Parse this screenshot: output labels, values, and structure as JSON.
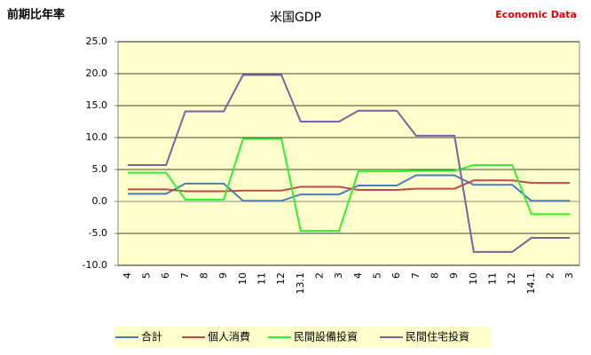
{
  "chart_data": {
    "type": "line",
    "title": "米国GDP",
    "y_label": "前期比年率",
    "source": "Economic Data",
    "categories": [
      "4",
      "5",
      "6",
      "7",
      "8",
      "9",
      "10",
      "11",
      "12",
      "13.1",
      "2",
      "3",
      "4",
      "5",
      "6",
      "7",
      "8",
      "9",
      "10",
      "11",
      "12",
      "14.1",
      "2",
      "3"
    ],
    "ylim": [
      -10,
      25
    ],
    "yticks": [
      {
        "value": -10,
        "label": "-10.0"
      },
      {
        "value": -5,
        "label": "-5.0"
      },
      {
        "value": 0,
        "label": "0.0"
      },
      {
        "value": 5,
        "label": "5.0"
      },
      {
        "value": 10,
        "label": "10.0"
      },
      {
        "value": 15,
        "label": "15.0"
      },
      {
        "value": 20,
        "label": "20.0"
      },
      {
        "value": 25,
        "label": "25.0"
      }
    ],
    "grid": true,
    "legend": "bottom",
    "series": [
      {
        "name": "合計",
        "color": "#4a7ebb",
        "values": [
          1.2,
          1.2,
          1.2,
          2.8,
          2.8,
          2.8,
          0.1,
          0.1,
          0.1,
          1.1,
          1.1,
          1.1,
          2.5,
          2.5,
          2.5,
          4.1,
          4.1,
          4.1,
          2.6,
          2.6,
          2.6,
          0.1,
          0.1,
          0.1
        ]
      },
      {
        "name": "個人消費",
        "color": "#be4b48",
        "values": [
          1.9,
          1.9,
          1.9,
          1.6,
          1.6,
          1.6,
          1.7,
          1.7,
          1.7,
          2.3,
          2.3,
          2.3,
          1.8,
          1.8,
          1.8,
          2.0,
          2.0,
          2.0,
          3.3,
          3.3,
          3.3,
          2.9,
          2.9,
          2.9
        ]
      },
      {
        "name": "民間設備投資",
        "color": "#33ee33",
        "values": [
          4.5,
          4.5,
          4.5,
          0.3,
          0.3,
          0.3,
          9.8,
          9.8,
          9.8,
          -4.6,
          -4.6,
          -4.6,
          4.7,
          4.7,
          4.7,
          4.8,
          4.8,
          4.8,
          5.7,
          5.7,
          5.7,
          -2.0,
          -2.0,
          -2.0
        ]
      },
      {
        "name": "民間住宅投資",
        "color": "#7d60a0",
        "values": [
          5.7,
          5.7,
          5.7,
          14.1,
          14.1,
          14.1,
          19.8,
          19.8,
          19.8,
          12.5,
          12.5,
          12.5,
          14.2,
          14.2,
          14.2,
          10.3,
          10.3,
          10.3,
          -7.9,
          -7.9,
          -7.9,
          -5.7,
          -5.7,
          -5.7
        ]
      }
    ]
  }
}
